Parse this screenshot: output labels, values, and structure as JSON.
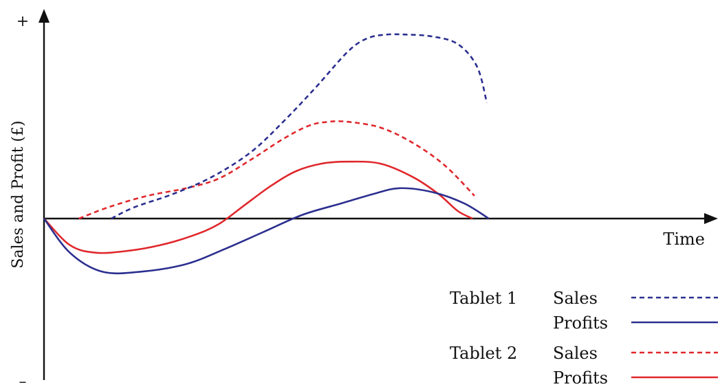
{
  "chart_data": {
    "type": "line",
    "xlabel": "Time",
    "ylabel": "Sales and Profit (£)",
    "y_top_symbol": "+",
    "y_bottom_symbol": "–",
    "x_ticks": false,
    "y_ticks": false,
    "grid": false,
    "xlim": [
      0,
      100
    ],
    "ylim": [
      -100,
      100
    ],
    "legend_position": "bottom-right",
    "groups": [
      {
        "label": "Tablet 1"
      },
      {
        "label": "Tablet 2"
      }
    ],
    "series": [
      {
        "group": "Tablet 1",
        "name": "Sales",
        "style": "dashed",
        "color": "#2b2f8f",
        "x": [
          10.4,
          14,
          20,
          26,
          32,
          37,
          42,
          47,
          50,
          53,
          56,
          60,
          64,
          67,
          68.5
        ],
        "y": [
          0,
          6,
          13,
          22,
          35,
          51,
          69,
          88,
          95,
          97,
          97,
          96,
          92,
          80,
          61
        ]
      },
      {
        "group": "Tablet 1",
        "name": "Profits",
        "style": "solid",
        "color": "#2b2f8f",
        "x": [
          0,
          4,
          9,
          15,
          22,
          28,
          34,
          40,
          46,
          51,
          55,
          60,
          65,
          68.8
        ],
        "y": [
          0,
          -18,
          -28,
          -28,
          -24,
          -16,
          -7,
          2,
          8,
          13,
          16,
          14,
          8,
          0
        ]
      },
      {
        "group": "Tablet 2",
        "name": "Sales",
        "style": "dashed",
        "color": "#e0272b",
        "x": [
          5.4,
          10,
          16,
          22,
          27,
          32,
          37,
          41,
          44,
          47,
          52,
          57,
          62,
          66.6
        ],
        "y": [
          0,
          6,
          12,
          16,
          21,
          31,
          42,
          49,
          51,
          51,
          48,
          40,
          28,
          12
        ]
      },
      {
        "group": "Tablet 2",
        "name": "Profits",
        "style": "solid",
        "color": "#e0272b",
        "x": [
          0,
          4,
          8,
          13,
          18,
          23,
          27,
          31,
          35,
          39,
          43,
          47,
          52,
          57,
          61,
          64,
          66.3
        ],
        "y": [
          0,
          -14,
          -18,
          -17,
          -14,
          -9,
          -3,
          7,
          17,
          25,
          29,
          30,
          29,
          22,
          13,
          4,
          0
        ]
      }
    ]
  }
}
